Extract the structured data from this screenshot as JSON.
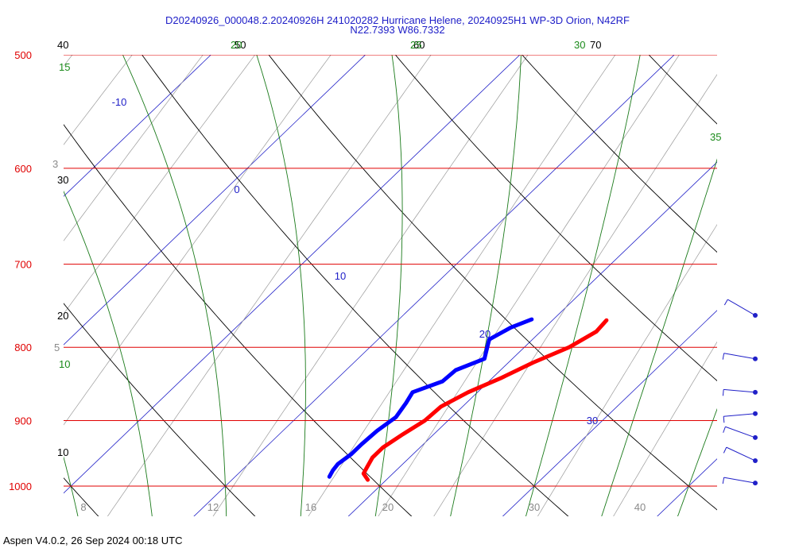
{
  "title": {
    "line1": "D20240926_000048.2.20240926H 241020282 Hurricane Helene, 20240925H1 WP-3D Orion, N42RF",
    "line2": "N22.7393 W86.7332"
  },
  "footer": "Aspen V4.0.2, 26 Sep 2024  00:18 UTC",
  "chart_data": {
    "type": "line",
    "x_ticks": [
      "8",
      "12",
      "16",
      "20",
      "30",
      "40"
    ],
    "pressure_levels": [
      {
        "p": 500,
        "label": "500"
      },
      {
        "p": 600,
        "label": "600"
      },
      {
        "p": 700,
        "label": "700"
      },
      {
        "p": 800,
        "label": "800"
      },
      {
        "p": 900,
        "label": "900"
      },
      {
        "p": 1000,
        "label": "1000"
      }
    ],
    "isotherm_labels": [
      "-10",
      "0",
      "10",
      "20",
      "30"
    ],
    "dry_adiabat_labels": [
      "10",
      "20",
      "30",
      "40",
      "50",
      "60",
      "70"
    ],
    "moist_adiabat_labels": [
      "10",
      "15",
      "20",
      "25",
      "30",
      "35"
    ],
    "mixing_ratio_labels": [
      "3",
      "5"
    ],
    "colors": {
      "isobar": "#e00000",
      "isotherm": "#2020c8",
      "dry_adiabat": "#000000",
      "moist_adiabat": "#1a7a1a",
      "mixing_ratio": "#9a9a9a",
      "temperature": "#ff0000",
      "dewpoint": "#0000ff",
      "wind_barb": "#2020c8"
    },
    "series": [
      {
        "points": [
          [
            766,
            23.5
          ],
          [
            780,
            23.6
          ],
          [
            800,
            22.9
          ],
          [
            820,
            21.6
          ],
          [
            840,
            20.6
          ],
          [
            860,
            19.4
          ],
          [
            880,
            18.6
          ],
          [
            900,
            18.5
          ],
          [
            920,
            18.0
          ],
          [
            940,
            17.6
          ],
          [
            955,
            17.6
          ],
          [
            970,
            17.9
          ],
          [
            980,
            18.1
          ],
          [
            990,
            18.8
          ]
        ]
      },
      {
        "points": [
          [
            765,
            18.6
          ],
          [
            775,
            17.8
          ],
          [
            790,
            17.2
          ],
          [
            805,
            17.8
          ],
          [
            815,
            18.2
          ],
          [
            830,
            17.1
          ],
          [
            845,
            17.0
          ],
          [
            860,
            15.8
          ],
          [
            875,
            16.1
          ],
          [
            895,
            16.4
          ],
          [
            915,
            16.1
          ],
          [
            935,
            16.0
          ],
          [
            950,
            16.0
          ],
          [
            965,
            15.8
          ],
          [
            975,
            15.9
          ],
          [
            985,
            16.1
          ]
        ]
      }
    ],
    "wind_barbs": [
      {
        "p": 760,
        "speed_kt": 10,
        "dir_deg": 300
      },
      {
        "p": 815,
        "speed_kt": 10,
        "dir_deg": 280
      },
      {
        "p": 860,
        "speed_kt": 10,
        "dir_deg": 275
      },
      {
        "p": 890,
        "speed_kt": 10,
        "dir_deg": 265
      },
      {
        "p": 925,
        "speed_kt": 10,
        "dir_deg": 290
      },
      {
        "p": 960,
        "speed_kt": 10,
        "dir_deg": 295
      },
      {
        "p": 995,
        "speed_kt": 10,
        "dir_deg": 280
      }
    ]
  }
}
